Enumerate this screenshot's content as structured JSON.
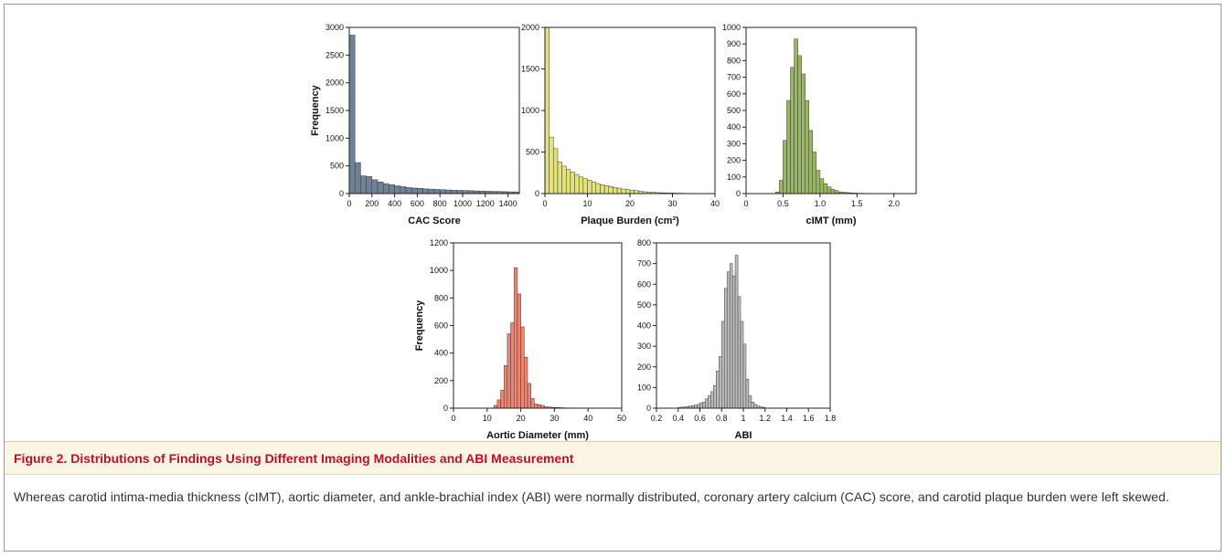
{
  "caption": {
    "label": "Figure 2.",
    "title": "Distributions of Findings Using Different Imaging Modalities and ABI Measurement",
    "body": "Whereas carotid intima-media thickness (cIMT), aortic diameter, and ankle-brachial index (ABI) were normally distributed, coronary artery calcium (CAC) score, and carotid plaque burden were left skewed."
  },
  "chart_data": [
    {
      "type": "bar",
      "id": "cac",
      "xlabel": "CAC Score",
      "ylabel": "Frequency",
      "xlim": [
        0,
        1500
      ],
      "ylim": [
        0,
        3000
      ],
      "xticks": [
        0,
        200,
        400,
        600,
        800,
        1000,
        1200,
        1400
      ],
      "yticks": [
        0,
        500,
        1000,
        1500,
        2000,
        2500,
        3000
      ],
      "bin_width": 50,
      "bin_start": 0,
      "values": [
        2860,
        560,
        320,
        310,
        250,
        210,
        180,
        160,
        140,
        125,
        110,
        100,
        95,
        85,
        80,
        75,
        70,
        65,
        62,
        58,
        55,
        52,
        48,
        45,
        42,
        40,
        38,
        35,
        32,
        30
      ],
      "color": "#6e8196"
    },
    {
      "type": "bar",
      "id": "plaque",
      "xlabel": "Plaque Burden (cm²)",
      "ylabel": "",
      "xlim": [
        0,
        40
      ],
      "ylim": [
        0,
        2000
      ],
      "xticks": [
        0,
        10,
        20,
        30,
        40
      ],
      "yticks": [
        0,
        500,
        1000,
        1500,
        2000
      ],
      "bin_width": 1,
      "bin_start": 0,
      "values": [
        2000,
        680,
        540,
        380,
        330,
        290,
        260,
        230,
        200,
        180,
        160,
        140,
        120,
        105,
        95,
        85,
        75,
        65,
        55,
        48,
        42,
        35,
        28,
        22,
        18,
        15,
        12,
        10,
        8,
        7,
        6,
        5,
        4,
        3,
        3,
        2
      ],
      "color": "#e3e37e"
    },
    {
      "type": "bar",
      "id": "cimt",
      "xlabel": "cIMT (mm)",
      "ylabel": "",
      "xlim": [
        0,
        2.3
      ],
      "ylim": [
        0,
        1000
      ],
      "xticks": [
        0,
        0.5,
        1.0,
        1.5,
        2.0
      ],
      "xticklabels": [
        "0",
        "0.5",
        "1.0",
        "1.5",
        "2.0"
      ],
      "yticks": [
        0,
        100,
        200,
        300,
        400,
        500,
        600,
        700,
        800,
        900,
        1000
      ],
      "bin_width": 0.05,
      "bin_start": 0.4,
      "values": [
        10,
        80,
        320,
        560,
        760,
        930,
        830,
        720,
        560,
        380,
        250,
        140,
        90,
        60,
        40,
        25,
        18,
        10,
        8,
        6,
        4,
        3,
        2,
        2,
        1,
        1,
        1,
        1
      ],
      "color": "#98b85a"
    },
    {
      "type": "bar",
      "id": "aortic",
      "xlabel": "Aortic Diameter (mm)",
      "ylabel": "Frequency",
      "xlim": [
        0,
        50
      ],
      "ylim": [
        0,
        1200
      ],
      "xticks": [
        0,
        10,
        20,
        30,
        40,
        50
      ],
      "yticks": [
        0,
        200,
        400,
        600,
        800,
        1000,
        1200
      ],
      "bin_width": 1,
      "bin_start": 12,
      "values": [
        20,
        60,
        130,
        310,
        540,
        620,
        1020,
        830,
        590,
        370,
        180,
        70,
        30,
        25,
        20,
        10,
        8,
        6,
        5,
        4,
        3,
        2,
        2,
        1,
        1,
        1
      ],
      "color": "#ee8572"
    },
    {
      "type": "bar",
      "id": "abi",
      "xlabel": "ABI",
      "ylabel": "",
      "xlim": [
        0.2,
        1.8
      ],
      "ylim": [
        0,
        800
      ],
      "xticks": [
        0.2,
        0.4,
        0.6,
        0.8,
        1.0,
        1.2,
        1.4,
        1.6,
        1.8
      ],
      "xticklabels": [
        "0.2",
        "0.4",
        "0.6",
        "0.8",
        "1",
        "1.2",
        "1.4",
        "1.6",
        "1.8"
      ],
      "yticks": [
        0,
        100,
        200,
        300,
        400,
        500,
        600,
        700,
        800
      ],
      "bin_width": 0.025,
      "bin_start": 0.4,
      "values": [
        4,
        5,
        6,
        8,
        10,
        12,
        15,
        18,
        25,
        30,
        45,
        60,
        80,
        110,
        180,
        250,
        420,
        580,
        660,
        700,
        640,
        740,
        540,
        420,
        310,
        140,
        60,
        30,
        18,
        10,
        6,
        4
      ],
      "color": "#bdbdbf"
    }
  ]
}
